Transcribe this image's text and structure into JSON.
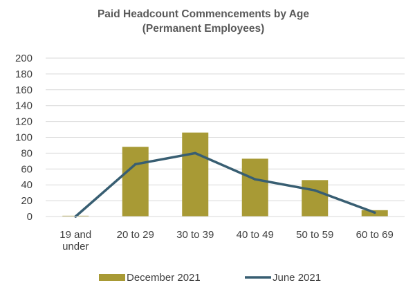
{
  "chart_data": {
    "type": "bar",
    "title": "Paid Headcount Commencements by Age",
    "subtitle": "(Permanent Employees)",
    "categories": [
      "19 and under",
      "20 to 29",
      "30 to 39",
      "40 to 49",
      "50 to 59",
      "60 to 69"
    ],
    "category_lines": [
      [
        "19 and",
        "under"
      ],
      [
        "20 to 29"
      ],
      [
        "30 to 39"
      ],
      [
        "40 to 49"
      ],
      [
        "50 to 59"
      ],
      [
        "60 to 69"
      ]
    ],
    "series": [
      {
        "name": "December 2021",
        "kind": "bar",
        "color": "#a89a35",
        "values": [
          1,
          88,
          106,
          73,
          46,
          8
        ]
      },
      {
        "name": "June 2021",
        "kind": "line",
        "color": "#385e72",
        "values": [
          0,
          66,
          80,
          47,
          33,
          5
        ]
      }
    ],
    "ylim": [
      0,
      200
    ],
    "yticks": [
      0,
      20,
      40,
      60,
      80,
      100,
      120,
      140,
      160,
      180,
      200
    ],
    "grid": true,
    "legend": "bottom"
  }
}
